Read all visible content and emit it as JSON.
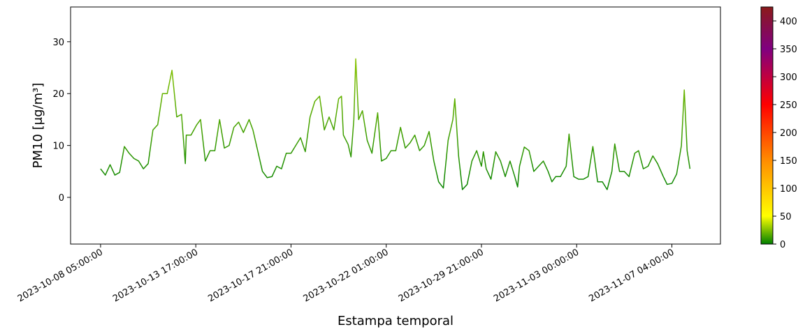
{
  "chart_data": {
    "type": "line",
    "x_label": "Estampa temporal",
    "y_label": "PM10 [μg/m³]",
    "x": [
      0,
      5,
      10,
      15,
      20,
      25,
      30,
      35,
      40,
      45,
      50,
      55,
      60,
      65,
      70,
      75,
      80,
      85,
      89,
      90,
      95,
      101,
      105,
      110,
      115,
      120,
      125,
      130,
      135,
      140,
      145,
      150,
      156,
      160,
      165,
      170,
      175,
      180,
      185,
      190,
      195,
      200,
      205,
      210,
      215,
      220,
      225,
      230,
      235,
      240,
      245,
      250,
      253,
      255,
      260,
      263,
      266,
      268,
      271,
      275,
      280,
      285,
      291,
      295,
      300,
      305,
      310,
      315,
      320,
      325,
      330,
      335,
      340,
      345,
      350,
      355,
      360,
      365,
      370,
      372,
      376,
      380,
      385,
      390,
      395,
      400,
      402,
      405,
      410,
      415,
      420,
      425,
      430,
      435,
      438,
      440,
      445,
      450,
      455,
      460,
      465,
      470,
      474,
      478,
      483,
      489,
      492,
      497,
      502,
      507,
      512,
      517,
      522,
      527,
      532,
      537,
      540,
      545,
      550,
      555,
      561,
      565,
      570,
      575,
      580,
      585,
      591,
      595,
      600,
      605,
      610,
      613,
      616,
      619
    ],
    "values": [
      5.5,
      4.3,
      6.3,
      4.3,
      4.8,
      9.8,
      8.5,
      7.5,
      7.0,
      5.5,
      6.5,
      13,
      14,
      20,
      20,
      24.5,
      15.5,
      16,
      6.5,
      12,
      12,
      14,
      15,
      7,
      9,
      9,
      15,
      9.5,
      10,
      13.5,
      14.5,
      12.5,
      15,
      13,
      9,
      5,
      3.8,
      4,
      6,
      5.5,
      8.5,
      8.5,
      10,
      11.5,
      8.8,
      15.5,
      18.5,
      19.5,
      13,
      15.5,
      13,
      19,
      19.5,
      12,
      10.2,
      7.8,
      15,
      26.7,
      15,
      16.7,
      11,
      8.5,
      16.3,
      7,
      7.5,
      9,
      9,
      13.5,
      9.5,
      10.5,
      12,
      9,
      10,
      12.7,
      7,
      3,
      1.8,
      11,
      15,
      19,
      8,
      1.5,
      2.5,
      7,
      9,
      6,
      8.8,
      5.5,
      3.5,
      8.8,
      7,
      4,
      7,
      4,
      2,
      6,
      9.7,
      9,
      5,
      6,
      7,
      5,
      3,
      4,
      4,
      6,
      12.2,
      4,
      3.5,
      3.5,
      4,
      9.8,
      3,
      3,
      1.5,
      5,
      10.3,
      5,
      5,
      4,
      8.5,
      9,
      5.5,
      6,
      8,
      6.5,
      4,
      2.5,
      2.7,
      4.5,
      10,
      20.7,
      9,
      5.5
    ],
    "xlim": [
      -31.5,
      651
    ],
    "xticks": [
      {
        "value": 0,
        "label": "2023-10-08 05:00:00"
      },
      {
        "value": 100,
        "label": "2023-10-13 17:00:00"
      },
      {
        "value": 200,
        "label": "2023-10-17 21:00:00"
      },
      {
        "value": 300,
        "label": "2023-10-22 01:00:00"
      },
      {
        "value": 400,
        "label": "2023-10-29 21:00:00"
      },
      {
        "value": 500,
        "label": "2023-11-03 00:00:00"
      },
      {
        "value": 600,
        "label": "2023-11-07 04:00:00"
      }
    ],
    "ylim": [
      -9,
      36.7
    ],
    "yticks": [
      0,
      10,
      20,
      30
    ],
    "colorbar": {
      "lim": [
        0,
        425
      ],
      "ticks": [
        0,
        50,
        100,
        150,
        200,
        250,
        300,
        350,
        400
      ],
      "stops": [
        {
          "value": 0,
          "color": "#008000"
        },
        {
          "value": 50,
          "color": "#ffff00"
        },
        {
          "value": 150,
          "color": "#ff8c00"
        },
        {
          "value": 250,
          "color": "#ff0000"
        },
        {
          "value": 350,
          "color": "#800080"
        },
        {
          "value": 425,
          "color": "#8b1a1a"
        }
      ]
    }
  }
}
